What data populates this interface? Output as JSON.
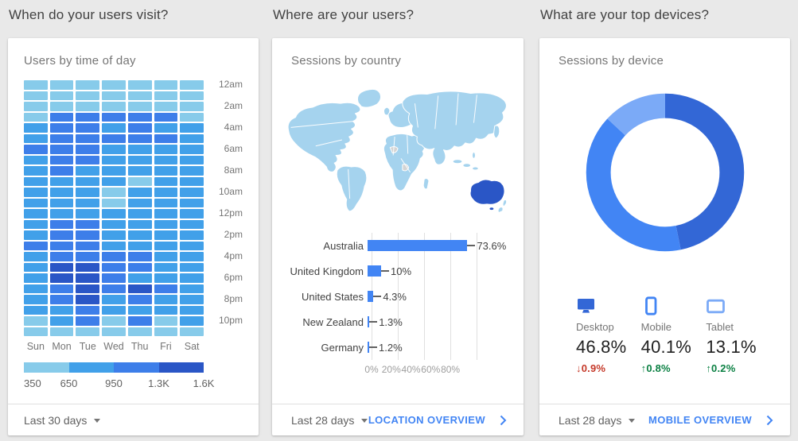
{
  "page": {
    "background": "#e9e9e9"
  },
  "colors": {
    "link_blue": "#4285f4",
    "bar_blue": "#4285f4",
    "grid_line": "#e0e0e0",
    "delta_down_red": "#c53929",
    "delta_up_green": "#0b8043",
    "question_text": "#424242",
    "panel_title_text": "#757575"
  },
  "heatmap_card": {
    "question": "When do your users visit?",
    "title": "Users by time of day",
    "footer": {
      "range_label": "Last 30 days"
    }
  },
  "geo_card": {
    "question": "Where are your users?",
    "title": "Sessions by country",
    "footer": {
      "range_label": "Last 28 days",
      "link_label": "LOCATION OVERVIEW"
    }
  },
  "device_card": {
    "question": "What are your top devices?",
    "title": "Sessions by device",
    "footer": {
      "range_label": "Last 28 days",
      "link_label": "MOBILE OVERVIEW"
    },
    "devices": [
      {
        "name": "Desktop",
        "share": "46.8%",
        "delta": "0.9%",
        "arrow": "↓",
        "direction": "down",
        "icon": "desktop-icon",
        "icon_color": "#3367d6",
        "delta_color": "#c53929"
      },
      {
        "name": "Mobile",
        "share": "40.1%",
        "delta": "0.8%",
        "arrow": "↑",
        "direction": "up",
        "icon": "mobile-icon",
        "icon_color": "#4285f4",
        "delta_color": "#0b8043"
      },
      {
        "name": "Tablet",
        "share": "13.1%",
        "delta": "0.2%",
        "arrow": "↑",
        "direction": "up",
        "icon": "tablet-icon",
        "icon_color": "#7baaf7",
        "delta_color": "#0b8043"
      }
    ]
  },
  "chart_data": [
    {
      "type": "heatmap",
      "title": "Users by time of day",
      "x_categories": [
        "Sun",
        "Mon",
        "Tue",
        "Wed",
        "Thu",
        "Fri",
        "Sat"
      ],
      "y_tick_labels_shown": [
        "12am",
        "2am",
        "4am",
        "6am",
        "8am",
        "10am",
        "12pm",
        "2pm",
        "4pm",
        "6pm",
        "8pm",
        "10pm"
      ],
      "level_colors": [
        "#87cbea",
        "#41a0e9",
        "#3d7ee9",
        "#2a56c6"
      ],
      "legend": {
        "stops": [
          "350",
          "650",
          "950",
          "1.3K",
          "1.6K"
        ],
        "colors": [
          "#87cbea",
          "#41a0e9",
          "#3d7ee9",
          "#2a56c6"
        ]
      },
      "levels_by_hour": [
        [
          1,
          1,
          1,
          1,
          1,
          1,
          1
        ],
        [
          1,
          1,
          1,
          1,
          1,
          1,
          1
        ],
        [
          1,
          1,
          1,
          1,
          1,
          1,
          1
        ],
        [
          1,
          3,
          3,
          3,
          3,
          3,
          1
        ],
        [
          2,
          3,
          3,
          2,
          3,
          2,
          2
        ],
        [
          2,
          3,
          3,
          3,
          3,
          3,
          2
        ],
        [
          3,
          3,
          3,
          2,
          2,
          2,
          2
        ],
        [
          2,
          3,
          3,
          2,
          2,
          2,
          2
        ],
        [
          2,
          3,
          2,
          2,
          2,
          2,
          2
        ],
        [
          2,
          2,
          2,
          2,
          1,
          2,
          2
        ],
        [
          2,
          2,
          2,
          1,
          2,
          2,
          2
        ],
        [
          2,
          2,
          2,
          1,
          2,
          2,
          2
        ],
        [
          2,
          2,
          2,
          2,
          2,
          2,
          2
        ],
        [
          2,
          3,
          3,
          2,
          2,
          2,
          2
        ],
        [
          2,
          3,
          3,
          2,
          2,
          2,
          2
        ],
        [
          3,
          3,
          3,
          2,
          2,
          2,
          2
        ],
        [
          2,
          3,
          3,
          3,
          3,
          2,
          2
        ],
        [
          2,
          4,
          4,
          3,
          3,
          2,
          2
        ],
        [
          2,
          4,
          4,
          3,
          2,
          2,
          2
        ],
        [
          2,
          3,
          4,
          3,
          4,
          3,
          2
        ],
        [
          2,
          3,
          4,
          2,
          3,
          2,
          2
        ],
        [
          2,
          2,
          3,
          2,
          2,
          2,
          2
        ],
        [
          1,
          2,
          3,
          1,
          3,
          1,
          2
        ],
        [
          1,
          1,
          1,
          1,
          1,
          1,
          1
        ]
      ]
    },
    {
      "type": "bar",
      "title": "Sessions by country",
      "categories": [
        "Australia",
        "United Kingdom",
        "United States",
        "New Zealand",
        "Germany"
      ],
      "values": [
        73.6,
        10,
        4.3,
        1.3,
        1.2
      ],
      "value_labels": [
        "73.6%",
        "10%",
        "4.3%",
        "1.3%",
        "1.2%"
      ],
      "x_ticks": [
        0,
        20,
        40,
        60,
        80
      ],
      "x_tick_labels": [
        "0%",
        "20%",
        "40%",
        "60%",
        "80%"
      ],
      "xlim": [
        0,
        88
      ],
      "bar_color": "#4285f4",
      "map": {
        "land_color": "#a5d3ee",
        "highlight_country": "Australia",
        "highlight_color": "#2a56c6",
        "no_data_color": "#d4d4d4",
        "border_color": "#ffffff"
      }
    },
    {
      "type": "donut",
      "title": "Sessions by device",
      "segments": [
        {
          "label": "Desktop",
          "value": 46.8,
          "color": "#3367d6"
        },
        {
          "label": "Mobile",
          "value": 40.1,
          "color": "#4285f4"
        },
        {
          "label": "Tablet",
          "value": 13.1,
          "color": "#7baaf7"
        }
      ],
      "start_angle_deg": 0,
      "direction": "clockwise"
    }
  ]
}
